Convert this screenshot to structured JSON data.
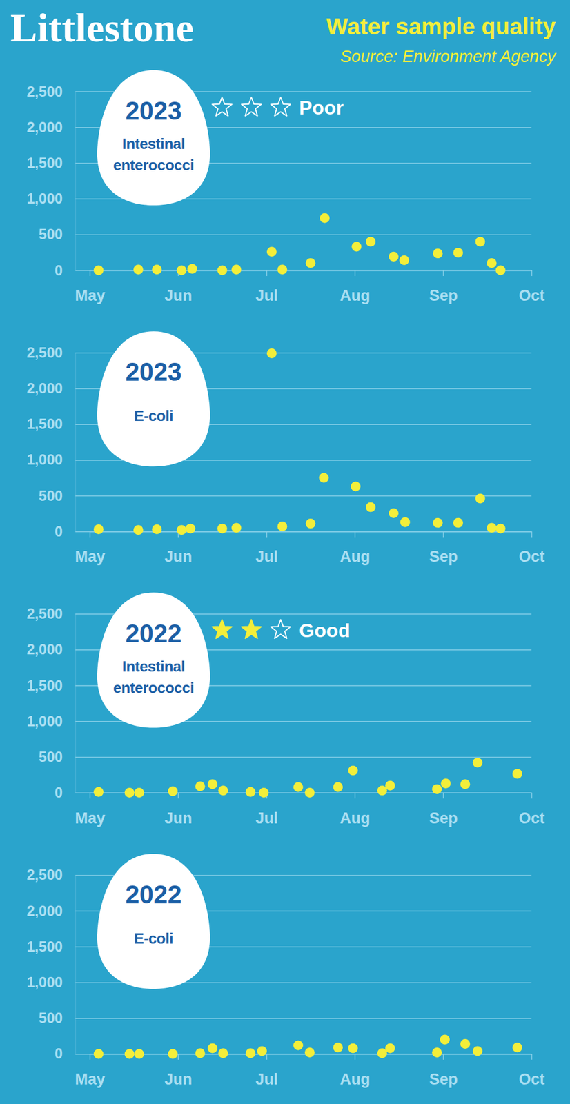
{
  "header": {
    "title": "Littlestone",
    "subtitle": "Water sample quality",
    "source": "Source: Environment Agency"
  },
  "chart_data": [
    {
      "type": "scatter",
      "title": "2023",
      "subtitle": "Intestinal enterococci",
      "rating": "Poor",
      "stars": 0,
      "max_stars": 3,
      "x": [
        5.1,
        5.55,
        5.76,
        6.04,
        6.16,
        6.5,
        6.66,
        7.06,
        7.18,
        7.5,
        7.66,
        8.02,
        8.18,
        8.44,
        8.56,
        8.94,
        9.17,
        9.42,
        9.55,
        9.65
      ],
      "values": [
        0,
        10,
        10,
        0,
        20,
        0,
        10,
        260,
        10,
        100,
        730,
        330,
        400,
        190,
        140,
        235,
        245,
        400,
        100,
        0
      ],
      "color": "#f3ee3a",
      "marker": "circle",
      "xlim": [
        5,
        10
      ],
      "xticks": [
        {
          "value": 5,
          "label": "May"
        },
        {
          "value": 6,
          "label": "Jun"
        },
        {
          "value": 7,
          "label": "Jul"
        },
        {
          "value": 8,
          "label": "Aug"
        },
        {
          "value": 9,
          "label": "Sep"
        },
        {
          "value": 10,
          "label": "Oct"
        }
      ],
      "ylim": [
        0,
        2500
      ],
      "yticks": [
        0,
        500,
        {
          "value": 1000,
          "label": "1,000"
        },
        {
          "value": 1500,
          "label": "1,500"
        },
        {
          "value": 2000,
          "label": "2,000"
        },
        {
          "value": 2500,
          "label": "2,500"
        }
      ],
      "grid": true
    },
    {
      "type": "scatter",
      "title": "2023",
      "subtitle": "E-coli",
      "x": [
        5.1,
        5.55,
        5.76,
        6.04,
        6.14,
        6.5,
        6.66,
        7.06,
        7.18,
        7.5,
        7.65,
        8.01,
        8.18,
        8.44,
        8.57,
        8.94,
        9.17,
        9.42,
        9.55,
        9.65
      ],
      "values": [
        30,
        20,
        30,
        20,
        40,
        40,
        50,
        2490,
        70,
        110,
        750,
        630,
        340,
        255,
        130,
        120,
        120,
        460,
        50,
        40
      ],
      "color": "#f3ee3a",
      "marker": "circle",
      "xlim": [
        5,
        10
      ],
      "xticks": [
        {
          "value": 5,
          "label": "May"
        },
        {
          "value": 6,
          "label": "Jun"
        },
        {
          "value": 7,
          "label": "Jul"
        },
        {
          "value": 8,
          "label": "Aug"
        },
        {
          "value": 9,
          "label": "Sep"
        },
        {
          "value": 10,
          "label": "Oct"
        }
      ],
      "ylim": [
        0,
        2500
      ],
      "yticks": [
        0,
        500,
        {
          "value": 1000,
          "label": "1,000"
        },
        {
          "value": 1500,
          "label": "1,500"
        },
        {
          "value": 2000,
          "label": "2,000"
        },
        {
          "value": 2500,
          "label": "2,500"
        }
      ],
      "grid": true
    },
    {
      "type": "scatter",
      "title": "2022",
      "subtitle": "Intestinal enterococci",
      "rating": "Good",
      "stars": 2,
      "max_stars": 3,
      "x": [
        5.1,
        5.45,
        5.56,
        5.94,
        6.25,
        6.39,
        6.51,
        6.82,
        6.97,
        7.36,
        7.49,
        7.81,
        7.98,
        8.31,
        8.4,
        8.93,
        9.03,
        9.25,
        9.39,
        9.84
      ],
      "values": [
        10,
        0,
        0,
        20,
        90,
        120,
        30,
        10,
        0,
        80,
        0,
        80,
        310,
        30,
        100,
        50,
        130,
        120,
        420,
        265
      ],
      "color": "#f3ee3a",
      "marker": "circle",
      "xlim": [
        5,
        10
      ],
      "xticks": [
        {
          "value": 5,
          "label": "May"
        },
        {
          "value": 6,
          "label": "Jun"
        },
        {
          "value": 7,
          "label": "Jul"
        },
        {
          "value": 8,
          "label": "Aug"
        },
        {
          "value": 9,
          "label": "Sep"
        },
        {
          "value": 10,
          "label": "Oct"
        }
      ],
      "ylim": [
        0,
        2500
      ],
      "yticks": [
        0,
        500,
        {
          "value": 1000,
          "label": "1,000"
        },
        {
          "value": 1500,
          "label": "1,500"
        },
        {
          "value": 2000,
          "label": "2,000"
        },
        {
          "value": 2500,
          "label": "2,500"
        }
      ],
      "grid": true
    },
    {
      "type": "scatter",
      "title": "2022",
      "subtitle": "E-coli",
      "x": [
        5.1,
        5.45,
        5.56,
        5.94,
        6.25,
        6.39,
        6.51,
        6.82,
        6.95,
        7.36,
        7.49,
        7.81,
        7.98,
        8.31,
        8.4,
        8.93,
        9.02,
        9.25,
        9.39,
        9.84
      ],
      "values": [
        0,
        0,
        0,
        0,
        10,
        80,
        10,
        10,
        40,
        120,
        20,
        90,
        80,
        10,
        80,
        20,
        200,
        140,
        40,
        90
      ],
      "color": "#f3ee3a",
      "marker": "circle",
      "xlim": [
        5,
        10
      ],
      "xticks": [
        {
          "value": 5,
          "label": "May"
        },
        {
          "value": 6,
          "label": "Jun"
        },
        {
          "value": 7,
          "label": "Jul"
        },
        {
          "value": 8,
          "label": "Aug"
        },
        {
          "value": 9,
          "label": "Sep"
        },
        {
          "value": 10,
          "label": "Oct"
        }
      ],
      "ylim": [
        0,
        2500
      ],
      "yticks": [
        0,
        500,
        {
          "value": 1000,
          "label": "1,000"
        },
        {
          "value": 1500,
          "label": "1,500"
        },
        {
          "value": 2000,
          "label": "2,000"
        },
        {
          "value": 2500,
          "label": "2,500"
        }
      ],
      "grid": true
    }
  ]
}
